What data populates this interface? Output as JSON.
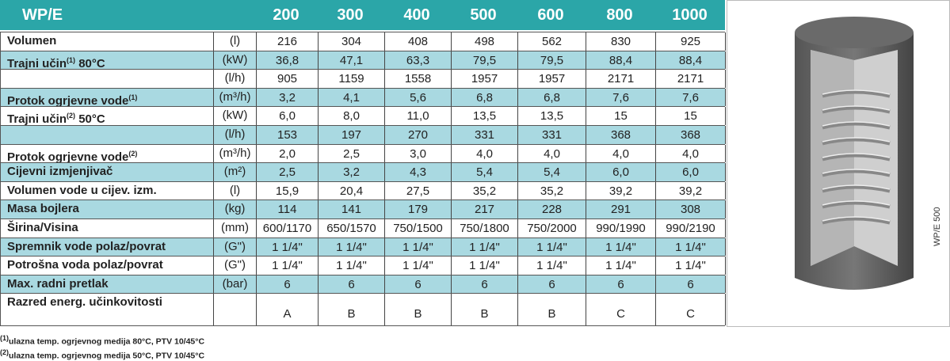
{
  "header": {
    "title": "WP/E",
    "models": [
      "200",
      "300",
      "400",
      "500",
      "600",
      "800",
      "1000"
    ]
  },
  "rows": [
    {
      "label": "Volumen",
      "unit": "(l)",
      "values": [
        "216",
        "304",
        "408",
        "498",
        "562",
        "830",
        "925"
      ]
    },
    {
      "label": "Trajni učin",
      "label_sup": "(1)",
      "label_suffix": "80°C",
      "unit": "(kW)",
      "values": [
        "36,8",
        "47,1",
        "63,3",
        "79,5",
        "79,5",
        "88,4",
        "88,4"
      ]
    },
    {
      "unit": "(l/h)",
      "values": [
        "905",
        "1159",
        "1558",
        "1957",
        "1957",
        "2171",
        "2171"
      ]
    },
    {
      "label": "Protok ogrjevne vode",
      "label_sup": "(1)",
      "unit": "(m³/h)",
      "values": [
        "3,2",
        "4,1",
        "5,6",
        "6,8",
        "6,8",
        "7,6",
        "7,6"
      ]
    },
    {
      "label": "Trajni učin",
      "label_sup": "(2)",
      "label_suffix": "50°C",
      "unit": "(kW)",
      "values": [
        "6,0",
        "8,0",
        "11,0",
        "13,5",
        "13,5",
        "15",
        "15"
      ]
    },
    {
      "unit": "(l/h)",
      "values": [
        "153",
        "197",
        "270",
        "331",
        "331",
        "368",
        "368"
      ]
    },
    {
      "label": "Protok ogrjevne vode",
      "label_sup": "(2)",
      "unit": "(m³/h)",
      "values": [
        "2,0",
        "2,5",
        "3,0",
        "4,0",
        "4,0",
        "4,0",
        "4,0"
      ]
    },
    {
      "label": "Cijevni izmjenjivač",
      "unit": "(m²)",
      "values": [
        "2,5",
        "3,2",
        "4,3",
        "5,4",
        "5,4",
        "6,0",
        "6,0"
      ]
    },
    {
      "label": "Volumen vode u cijev. izm.",
      "unit": "(l)",
      "values": [
        "15,9",
        "20,4",
        "27,5",
        "35,2",
        "35,2",
        "39,2",
        "39,2"
      ]
    },
    {
      "label": "Masa bojlera",
      "unit": "(kg)",
      "values": [
        "114",
        "141",
        "179",
        "217",
        "228",
        "291",
        "308"
      ]
    },
    {
      "label": "Širina/Visina",
      "unit": "(mm)",
      "values": [
        "600/1170",
        "650/1570",
        "750/1500",
        "750/1800",
        "750/2000",
        "990/1990",
        "990/2190"
      ]
    },
    {
      "label": "Spremnik vode polaz/povrat",
      "unit": "(G\")",
      "values": [
        "1 1/4\"",
        "1 1/4\"",
        "1 1/4\"",
        "1 1/4\"",
        "1 1/4\"",
        "1 1/4\"",
        "1 1/4\""
      ]
    },
    {
      "label": "Potrošna voda polaz/povrat",
      "unit": "(G\")",
      "values": [
        "1 1/4\"",
        "1 1/4\"",
        "1 1/4\"",
        "1 1/4\"",
        "1 1/4\"",
        "1 1/4\"",
        "1 1/4\""
      ]
    },
    {
      "label": "Max. radni pretlak",
      "unit": "(bar)",
      "values": [
        "6",
        "6",
        "6",
        "6",
        "6",
        "6",
        "6"
      ]
    },
    {
      "label": "Razred energ. učinkovitosti",
      "values": [
        "A",
        "B",
        "B",
        "B",
        "B",
        "C",
        "C"
      ]
    }
  ],
  "footnotes": [
    {
      "mark": "(1)",
      "text": "ulazna temp. ogrjevnog medija 80°C, PTV 10/45°C"
    },
    {
      "mark": "(2)",
      "text": "ulazna temp. ogrjevnog medija 50°C, PTV 10/45°C"
    }
  ],
  "image": {
    "caption": "WP/E 500"
  }
}
